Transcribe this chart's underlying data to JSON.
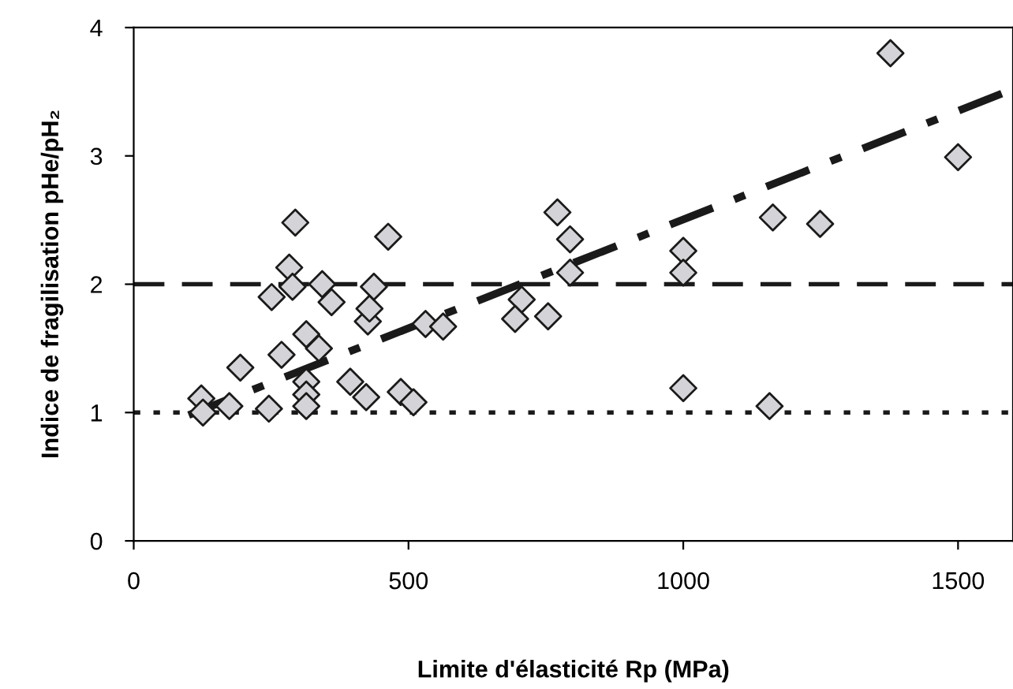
{
  "chart_data": {
    "type": "scatter",
    "xlabel": "Limite d'élasticité Rp (MPa)",
    "ylabel": "Indice de fragilisation pHe/pH₂",
    "xlim": [
      0,
      1600
    ],
    "ylim": [
      0,
      4
    ],
    "xticks": [
      0,
      500,
      1000,
      1500
    ],
    "yticks": [
      0,
      1,
      2,
      3,
      4
    ],
    "grid": false,
    "legend": false,
    "series": [
      {
        "marker": "diamond",
        "color": "#d4d4d8",
        "x": [
          123,
          126,
          174,
          194,
          246,
          269,
          251,
          283,
          289,
          294,
          314,
          337,
          314,
          314,
          314,
          343,
          360,
          394,
          423,
          426,
          429,
          437,
          463,
          486,
          509,
          531,
          563,
          771,
          794,
          794,
          706,
          694,
          754,
          1000,
          1000,
          1000,
          1157,
          1163,
          1249,
          1377,
          1500
        ],
        "values": [
          1.11,
          1.0,
          1.05,
          1.35,
          1.03,
          1.45,
          1.9,
          2.13,
          1.98,
          2.48,
          1.61,
          1.5,
          1.24,
          1.14,
          1.05,
          2.0,
          1.86,
          1.24,
          1.12,
          1.71,
          1.81,
          1.98,
          2.37,
          1.16,
          1.08,
          1.69,
          1.67,
          2.56,
          2.35,
          2.09,
          1.88,
          1.73,
          1.75,
          2.26,
          2.09,
          1.19,
          1.05,
          2.52,
          2.47,
          3.8,
          2.99
        ]
      },
      {
        "type": "line",
        "line_style": "dashdot",
        "color": "#1a1a1a",
        "x": [
          100,
          1600
        ],
        "values": [
          0.98,
          3.52
        ]
      }
    ],
    "ref_lines": [
      {
        "axis": "y",
        "value": 2,
        "line_style": "dashed",
        "color": "#1a1a1a"
      },
      {
        "axis": "y",
        "value": 1,
        "line_style": "dotted",
        "color": "#1a1a1a"
      }
    ]
  }
}
